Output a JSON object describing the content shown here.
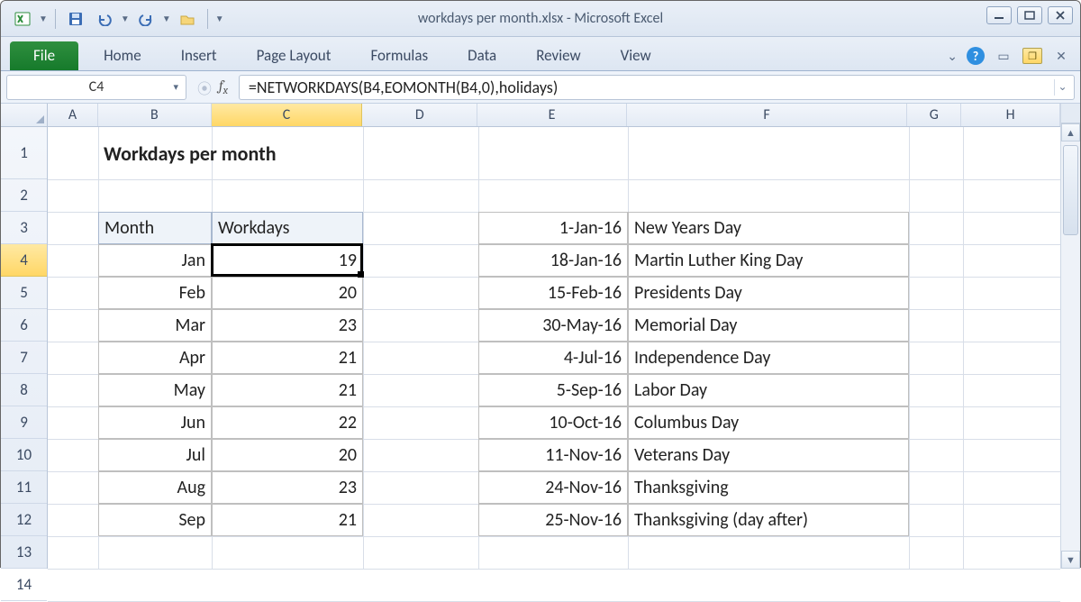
{
  "window": {
    "title": "workdays per month.xlsx  -  Microsoft Excel"
  },
  "ribbon": {
    "file_label": "File",
    "tabs": [
      "Home",
      "Insert",
      "Page Layout",
      "Formulas",
      "Data",
      "Review",
      "View"
    ]
  },
  "formula_bar": {
    "name_box": "C4",
    "formula": "=NETWORKDAYS(B4,EOMONTH(B4,0),holidays)"
  },
  "columns": {
    "labels": [
      "A",
      "B",
      "C",
      "D",
      "E",
      "F",
      "G",
      "H"
    ],
    "widths": [
      56,
      126,
      168,
      128,
      166,
      312,
      60,
      110
    ],
    "selected_index": 2
  },
  "rows": {
    "count": 14,
    "first_height": 58,
    "height": 36,
    "selected_index": 3
  },
  "sheet": {
    "title": "Workdays per month",
    "table_headers": {
      "month": "Month",
      "workdays": "Workdays"
    },
    "workdays_table": [
      {
        "month": "Jan",
        "days": "19"
      },
      {
        "month": "Feb",
        "days": "20"
      },
      {
        "month": "Mar",
        "days": "23"
      },
      {
        "month": "Apr",
        "days": "21"
      },
      {
        "month": "May",
        "days": "21"
      },
      {
        "month": "Jun",
        "days": "22"
      },
      {
        "month": "Jul",
        "days": "20"
      },
      {
        "month": "Aug",
        "days": "23"
      },
      {
        "month": "Sep",
        "days": "21"
      }
    ],
    "holidays_table": [
      {
        "date": "1-Jan-16",
        "name": "New Years Day"
      },
      {
        "date": "18-Jan-16",
        "name": "Martin Luther King Day"
      },
      {
        "date": "15-Feb-16",
        "name": "Presidents Day"
      },
      {
        "date": "30-May-16",
        "name": "Memorial Day"
      },
      {
        "date": "4-Jul-16",
        "name": "Independence Day"
      },
      {
        "date": "5-Sep-16",
        "name": "Labor Day"
      },
      {
        "date": "10-Oct-16",
        "name": "Columbus Day"
      },
      {
        "date": "11-Nov-16",
        "name": "Veterans Day"
      },
      {
        "date": "24-Nov-16",
        "name": "Thanksgiving"
      },
      {
        "date": "25-Nov-16",
        "name": "Thanksgiving (day after)"
      }
    ],
    "selection": {
      "col": 2,
      "row": 3
    }
  },
  "style": {
    "header_fill": "#eef3f9",
    "cell_border": "#bfbfbf",
    "gridline": "#d8dee8",
    "title_fontsize": 22,
    "cell_fontsize": 20,
    "font_family": "Calibri"
  }
}
